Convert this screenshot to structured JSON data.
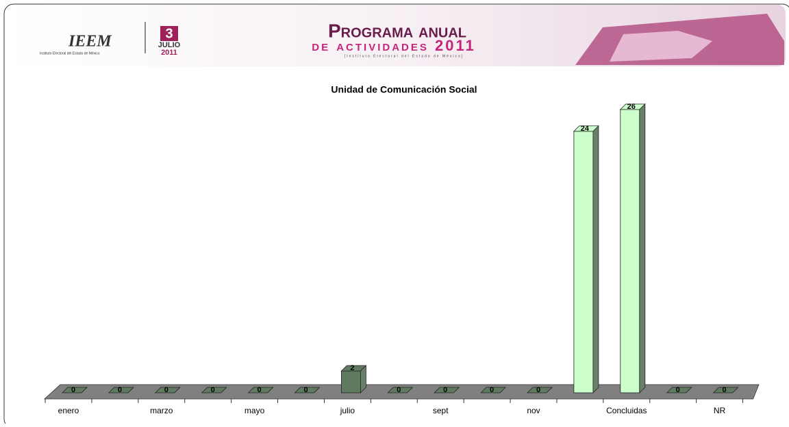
{
  "header": {
    "logo": "IEEM",
    "logo_caption": "Instituto Electoral del Estado de México",
    "day": "3",
    "month": "JULIO",
    "year": "2011",
    "title_line1": "Programa anual",
    "title_line2": "de actividades 2011",
    "subtitle": "[Instituto Electoral del Estado de México]"
  },
  "chart_data": {
    "type": "bar3d",
    "title": "Unidad de Comunicación Social",
    "categories": [
      "enero",
      null,
      "marzo",
      null,
      "mayo",
      null,
      "julio",
      null,
      "sept",
      null,
      "nov",
      null,
      "Concluidas",
      null,
      "NR"
    ],
    "values": [
      0,
      0,
      0,
      0,
      0,
      0,
      2,
      0,
      0,
      0,
      0,
      24,
      26,
      0,
      0
    ],
    "colors": [
      "#5f7a5f",
      "#5f7a5f",
      "#5f7a5f",
      "#5f7a5f",
      "#5f7a5f",
      "#5f7a5f",
      "#5f7a5f",
      "#5f7a5f",
      "#5f7a5f",
      "#5f7a5f",
      "#5f7a5f",
      "#ccffcc",
      "#ccffcc",
      "#5f7a5f",
      "#5f7a5f"
    ],
    "floor_color": "#808080"
  }
}
